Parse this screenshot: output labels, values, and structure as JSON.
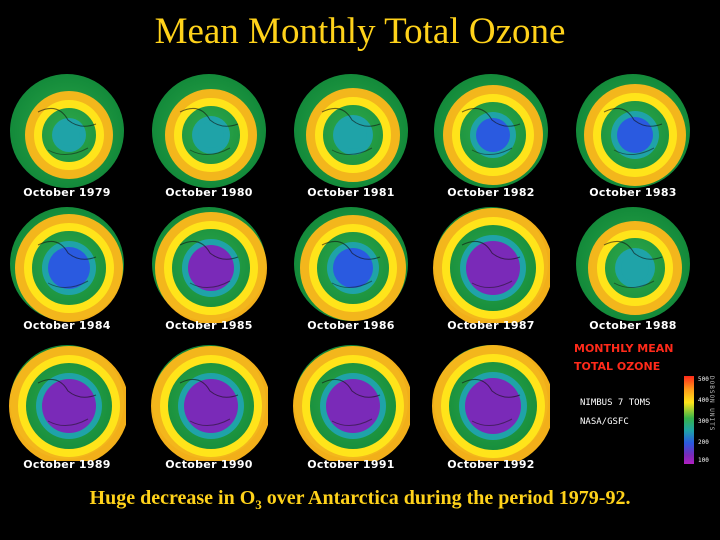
{
  "title": "Mean Monthly Total Ozone",
  "globes": [
    {
      "label": "October 1979",
      "hole": 0.05
    },
    {
      "label": "October 1980",
      "hole": 0.15
    },
    {
      "label": "October 1981",
      "hole": 0.2
    },
    {
      "label": "October 1982",
      "hole": 0.35
    },
    {
      "label": "October 1983",
      "hole": 0.4
    },
    {
      "label": "October 1984",
      "hole": 0.55
    },
    {
      "label": "October 1985",
      "hole": 0.65
    },
    {
      "label": "October 1986",
      "hole": 0.5
    },
    {
      "label": "October 1987",
      "hole": 0.85
    },
    {
      "label": "October 1988",
      "hole": 0.2
    },
    {
      "label": "October 1989",
      "hole": 0.85
    },
    {
      "label": "October 1990",
      "hole": 0.85
    },
    {
      "label": "October 1991",
      "hole": 0.85
    },
    {
      "label": "October 1992",
      "hole": 0.9
    }
  ],
  "legend": {
    "line1": "MONTHLY MEAN",
    "line2": "TOTAL OZONE",
    "source1": "NIMBUS 7 TOMS",
    "source2": "NASA/GSFC",
    "ticks": [
      "500",
      "400",
      "300",
      "200",
      "100"
    ],
    "units": "DOBSON UNITS"
  },
  "caption_parts": {
    "pre": "Huge decrease in O",
    "sub": "3",
    "post": " over Antarctica during the period 1979-92."
  },
  "colors": {
    "title": "#ffd21a",
    "background": "#000000",
    "ozone_high": "#ffe41a",
    "ozone_mid": "#36b34a",
    "ozone_low": "#7a2ab8"
  }
}
